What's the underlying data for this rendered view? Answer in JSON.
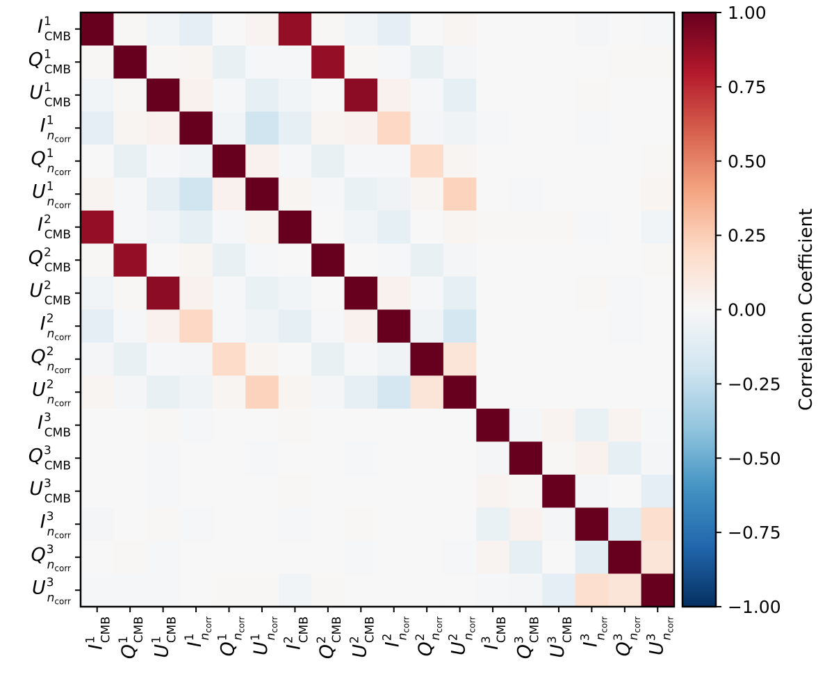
{
  "chart_data": {
    "type": "heatmap",
    "title": "",
    "xlabel": "",
    "ylabel": "",
    "labels": [
      {
        "base": "I",
        "sup": "1",
        "sub": "CMB",
        "subItalic": false
      },
      {
        "base": "Q",
        "sup": "1",
        "sub": "CMB",
        "subItalic": false
      },
      {
        "base": "U",
        "sup": "1",
        "sub": "CMB",
        "subItalic": false
      },
      {
        "base": "I",
        "sup": "1",
        "sub": "n",
        "subsub": "corr",
        "subItalic": true
      },
      {
        "base": "Q",
        "sup": "1",
        "sub": "n",
        "subsub": "corr",
        "subItalic": true
      },
      {
        "base": "U",
        "sup": "1",
        "sub": "n",
        "subsub": "corr",
        "subItalic": true
      },
      {
        "base": "I",
        "sup": "2",
        "sub": "CMB",
        "subItalic": false
      },
      {
        "base": "Q",
        "sup": "2",
        "sub": "CMB",
        "subItalic": false
      },
      {
        "base": "U",
        "sup": "2",
        "sub": "CMB",
        "subItalic": false
      },
      {
        "base": "I",
        "sup": "2",
        "sub": "n",
        "subsub": "corr",
        "subItalic": true
      },
      {
        "base": "Q",
        "sup": "2",
        "sub": "n",
        "subsub": "corr",
        "subItalic": true
      },
      {
        "base": "U",
        "sup": "2",
        "sub": "n",
        "subsub": "corr",
        "subItalic": true
      },
      {
        "base": "I",
        "sup": "3",
        "sub": "CMB",
        "subItalic": false
      },
      {
        "base": "Q",
        "sup": "3",
        "sub": "CMB",
        "subItalic": false
      },
      {
        "base": "U",
        "sup": "3",
        "sub": "CMB",
        "subItalic": false
      },
      {
        "base": "I",
        "sup": "3",
        "sub": "n",
        "subsub": "corr",
        "subItalic": true
      },
      {
        "base": "Q",
        "sup": "3",
        "sub": "n",
        "subsub": "corr",
        "subItalic": true
      },
      {
        "base": "U",
        "sup": "3",
        "sub": "n",
        "subsub": "corr",
        "subItalic": true
      }
    ],
    "matrix": [
      [
        1.0,
        0.01,
        -0.03,
        -0.1,
        0.0,
        0.03,
        0.88,
        0.01,
        -0.03,
        -0.1,
        0.0,
        0.02,
        0.0,
        0.0,
        0.0,
        -0.02,
        0.0,
        -0.01
      ],
      [
        0.01,
        1.0,
        0.01,
        0.02,
        -0.08,
        -0.01,
        -0.01,
        0.88,
        0.01,
        -0.01,
        -0.08,
        -0.02,
        0.0,
        0.0,
        0.0,
        0.0,
        0.01,
        0.01
      ],
      [
        -0.03,
        0.01,
        1.0,
        0.04,
        -0.01,
        -0.09,
        -0.03,
        0.0,
        0.9,
        0.04,
        -0.01,
        -0.09,
        0.0,
        0.0,
        0.0,
        0.01,
        0.0,
        0.0
      ],
      [
        -0.1,
        0.02,
        0.04,
        1.0,
        -0.03,
        -0.2,
        -0.09,
        0.02,
        0.04,
        0.21,
        -0.02,
        -0.04,
        -0.01,
        0.0,
        0.0,
        -0.01,
        0.0,
        0.0
      ],
      [
        0.0,
        -0.08,
        -0.01,
        -0.03,
        1.0,
        0.04,
        -0.01,
        -0.08,
        -0.01,
        -0.01,
        0.19,
        0.02,
        0.0,
        0.0,
        0.0,
        0.0,
        0.0,
        0.01
      ],
      [
        0.03,
        -0.01,
        -0.09,
        -0.2,
        0.04,
        1.0,
        0.02,
        -0.01,
        -0.07,
        -0.04,
        0.02,
        0.23,
        0.0,
        -0.01,
        0.0,
        0.0,
        0.0,
        0.02
      ],
      [
        0.88,
        -0.01,
        -0.03,
        -0.09,
        -0.01,
        0.02,
        1.0,
        0.0,
        -0.03,
        -0.09,
        0.0,
        0.02,
        0.01,
        0.01,
        0.01,
        -0.01,
        0.0,
        -0.03
      ],
      [
        0.01,
        0.88,
        0.0,
        0.02,
        -0.08,
        -0.01,
        0.0,
        1.0,
        0.0,
        -0.01,
        -0.08,
        -0.02,
        0.0,
        0.0,
        0.0,
        0.0,
        0.0,
        0.01
      ],
      [
        -0.03,
        0.01,
        0.9,
        0.04,
        -0.01,
        -0.07,
        -0.03,
        0.0,
        1.0,
        0.04,
        -0.01,
        -0.09,
        0.0,
        0.0,
        0.0,
        0.01,
        -0.01,
        0.0
      ],
      [
        -0.1,
        -0.01,
        0.04,
        0.21,
        -0.01,
        -0.04,
        -0.09,
        -0.01,
        0.04,
        1.0,
        -0.04,
        -0.18,
        0.0,
        0.0,
        0.0,
        0.0,
        -0.01,
        0.0
      ],
      [
        -0.02,
        -0.08,
        -0.01,
        -0.02,
        0.19,
        0.02,
        0.0,
        -0.08,
        -0.01,
        -0.04,
        1.0,
        0.13,
        0.0,
        0.0,
        0.0,
        0.0,
        0.0,
        0.0
      ],
      [
        0.02,
        -0.02,
        -0.08,
        -0.04,
        0.02,
        0.23,
        0.02,
        -0.02,
        -0.09,
        -0.18,
        0.13,
        1.0,
        0.0,
        0.0,
        0.0,
        0.0,
        0.0,
        0.0
      ],
      [
        0.0,
        0.0,
        0.01,
        -0.01,
        0.0,
        0.0,
        0.01,
        0.0,
        0.0,
        0.0,
        0.0,
        0.0,
        1.0,
        -0.02,
        0.03,
        -0.07,
        0.03,
        -0.01
      ],
      [
        0.0,
        0.0,
        -0.01,
        0.0,
        0.0,
        -0.01,
        0.0,
        0.0,
        -0.01,
        0.0,
        0.0,
        0.0,
        -0.02,
        1.0,
        0.01,
        0.04,
        -0.09,
        -0.02
      ],
      [
        0.0,
        0.0,
        -0.01,
        0.0,
        0.0,
        0.0,
        0.01,
        0.0,
        0.0,
        0.0,
        0.0,
        0.0,
        0.03,
        0.01,
        1.0,
        -0.02,
        0.0,
        -0.1
      ],
      [
        -0.02,
        0.0,
        0.01,
        -0.01,
        0.0,
        0.0,
        -0.01,
        0.0,
        0.01,
        0.0,
        0.0,
        0.0,
        -0.07,
        0.04,
        -0.02,
        1.0,
        -0.11,
        0.17
      ],
      [
        0.0,
        0.01,
        -0.01,
        0.0,
        0.0,
        0.0,
        0.0,
        0.0,
        -0.01,
        0.0,
        0.0,
        -0.01,
        0.03,
        -0.09,
        0.0,
        -0.11,
        1.0,
        0.13
      ],
      [
        -0.01,
        -0.01,
        -0.01,
        0.0,
        0.01,
        0.01,
        -0.03,
        0.01,
        0.0,
        0.0,
        0.0,
        0.0,
        -0.01,
        -0.02,
        -0.1,
        0.17,
        0.13,
        1.0
      ]
    ],
    "colorbar": {
      "label": "Correlation Coefficient",
      "vmin": -1.0,
      "vmax": 1.0,
      "ticks": [
        1.0,
        0.75,
        0.5,
        0.25,
        0.0,
        -0.25,
        -0.5,
        -0.75,
        -1.0
      ],
      "tick_labels": [
        "1.00",
        "0.75",
        "0.50",
        "0.25",
        "0.00",
        "−0.25",
        "−0.50",
        "−0.75",
        "−1.00"
      ],
      "colormap": "RdBu_r",
      "colormap_stops": [
        "#053061",
        "#2166ac",
        "#4393c3",
        "#92c5de",
        "#d1e5f0",
        "#f7f7f7",
        "#fddbc7",
        "#f4a582",
        "#d6604d",
        "#b2182b",
        "#67001f"
      ]
    }
  }
}
